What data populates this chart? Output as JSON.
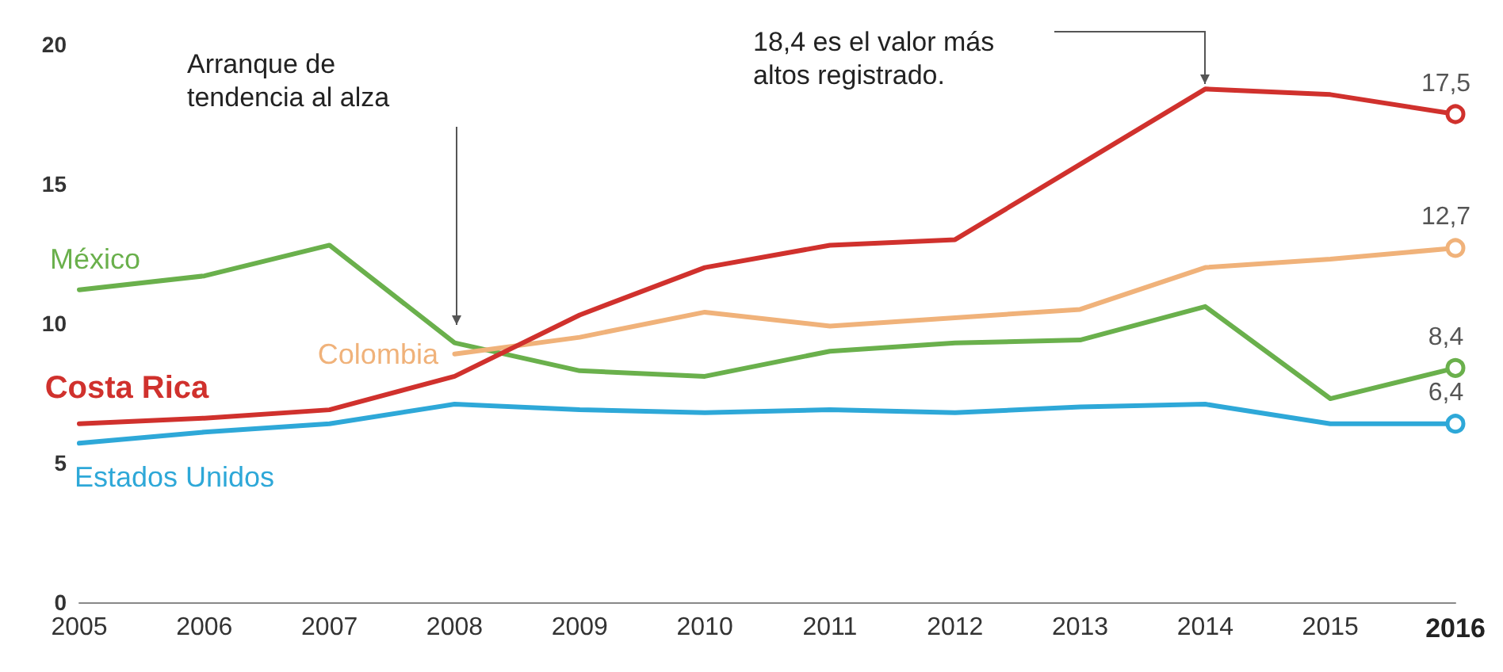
{
  "chart_data": {
    "type": "line",
    "categories": [
      "2005",
      "2006",
      "2007",
      "2008",
      "2009",
      "2010",
      "2011",
      "2012",
      "2013",
      "2014",
      "2015",
      "2016"
    ],
    "ylim": [
      0,
      20
    ],
    "yticks": [
      0,
      5,
      10,
      15,
      20
    ],
    "grid": false,
    "legend": "left",
    "series": [
      {
        "name": "México",
        "color": "#6ab04c",
        "values": [
          11.2,
          11.7,
          12.8,
          9.3,
          8.3,
          8.1,
          9.0,
          9.3,
          9.4,
          10.6,
          7.3,
          8.4
        ],
        "value_labels": [
          null,
          null,
          null,
          null,
          null,
          null,
          null,
          null,
          null,
          null,
          null,
          "8,4"
        ]
      },
      {
        "name": "Colombia",
        "color": "#f0b27a",
        "values": [
          null,
          null,
          null,
          8.9,
          9.5,
          10.4,
          9.9,
          10.2,
          10.5,
          12.0,
          12.3,
          12.7
        ],
        "value_labels": [
          null,
          null,
          null,
          null,
          null,
          null,
          null,
          null,
          null,
          null,
          null,
          "12,7"
        ]
      },
      {
        "name": "Costa Rica",
        "color": "#d0312d",
        "values": [
          6.4,
          6.6,
          6.9,
          8.1,
          10.3,
          12.0,
          12.8,
          13.0,
          15.7,
          18.4,
          18.2,
          17.5
        ],
        "value_labels": [
          null,
          null,
          null,
          null,
          null,
          null,
          null,
          null,
          null,
          null,
          null,
          "17,5"
        ]
      },
      {
        "name": "Estados Unidos",
        "color": "#2ea8d8",
        "values": [
          5.7,
          6.1,
          6.4,
          7.1,
          6.9,
          6.8,
          6.9,
          6.8,
          7.0,
          7.1,
          6.4,
          6.4
        ],
        "value_labels": [
          null,
          null,
          null,
          null,
          null,
          null,
          null,
          null,
          null,
          null,
          null,
          "6,4"
        ]
      }
    ],
    "annotations": [
      "Arranque de\ntendencia al alza",
      "18,4 es el valor más\naltos registrado."
    ]
  }
}
